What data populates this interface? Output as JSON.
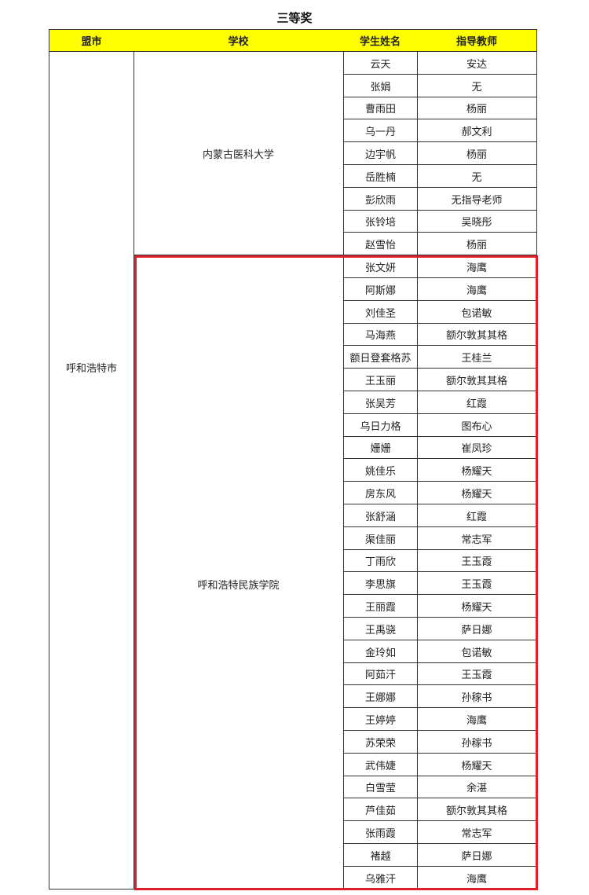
{
  "title": "三等奖",
  "headers": [
    "盟市",
    "学校",
    "学生姓名",
    "指导教师"
  ],
  "city": "呼和浩特市",
  "schools": [
    {
      "name": "内蒙古医科大学",
      "rows": [
        [
          "云天",
          "安达"
        ],
        [
          "张娟",
          "无"
        ],
        [
          "曹雨田",
          "杨丽"
        ],
        [
          "乌一丹",
          "郝文利"
        ],
        [
          "边宇帆",
          "杨丽"
        ],
        [
          "岳胜楠",
          "无"
        ],
        [
          "彭欣雨",
          "无指导老师"
        ],
        [
          "张铃培",
          "吴晓彤"
        ],
        [
          "赵雪怡",
          "杨丽"
        ]
      ]
    },
    {
      "name": "呼和浩特民族学院",
      "rows": [
        [
          "张文妍",
          "海鹰"
        ],
        [
          "阿斯娜",
          "海鹰"
        ],
        [
          "刘佳圣",
          "包诺敏"
        ],
        [
          "马海燕",
          "额尔敦其其格"
        ],
        [
          "额日登套格苏",
          "王桂兰"
        ],
        [
          "王玉丽",
          "额尔敦其其格"
        ],
        [
          "张吴芳",
          "红霞"
        ],
        [
          "乌日力格",
          "图布心"
        ],
        [
          "姗姗",
          "崔凤珍"
        ],
        [
          "姚佳乐",
          "杨耀天"
        ],
        [
          "房东风",
          "杨耀天"
        ],
        [
          "张舒涵",
          "红霞"
        ],
        [
          "渠佳丽",
          "常志军"
        ],
        [
          "丁雨欣",
          "王玉霞"
        ],
        [
          "李思旗",
          "王玉霞"
        ],
        [
          "王丽霞",
          "杨耀天"
        ],
        [
          "王禹骁",
          "萨日娜"
        ],
        [
          "金玲如",
          "包诺敏"
        ],
        [
          "阿茹汗",
          "王玉霞"
        ],
        [
          "王娜娜",
          "孙稼书"
        ],
        [
          "王婷婷",
          "海鹰"
        ],
        [
          "苏荣荣",
          "孙稼书"
        ],
        [
          "武伟婕",
          "杨耀天"
        ],
        [
          "白雪莹",
          "余湛"
        ],
        [
          "芦佳茹",
          "额尔敦其其格"
        ],
        [
          "张雨霞",
          "常志军"
        ],
        [
          "褚越",
          "萨日娜"
        ],
        [
          "乌雅汗",
          "海鹰"
        ]
      ]
    }
  ],
  "colors": {
    "header_bg": "#ffff00",
    "highlight_border": "#e31e2b"
  }
}
